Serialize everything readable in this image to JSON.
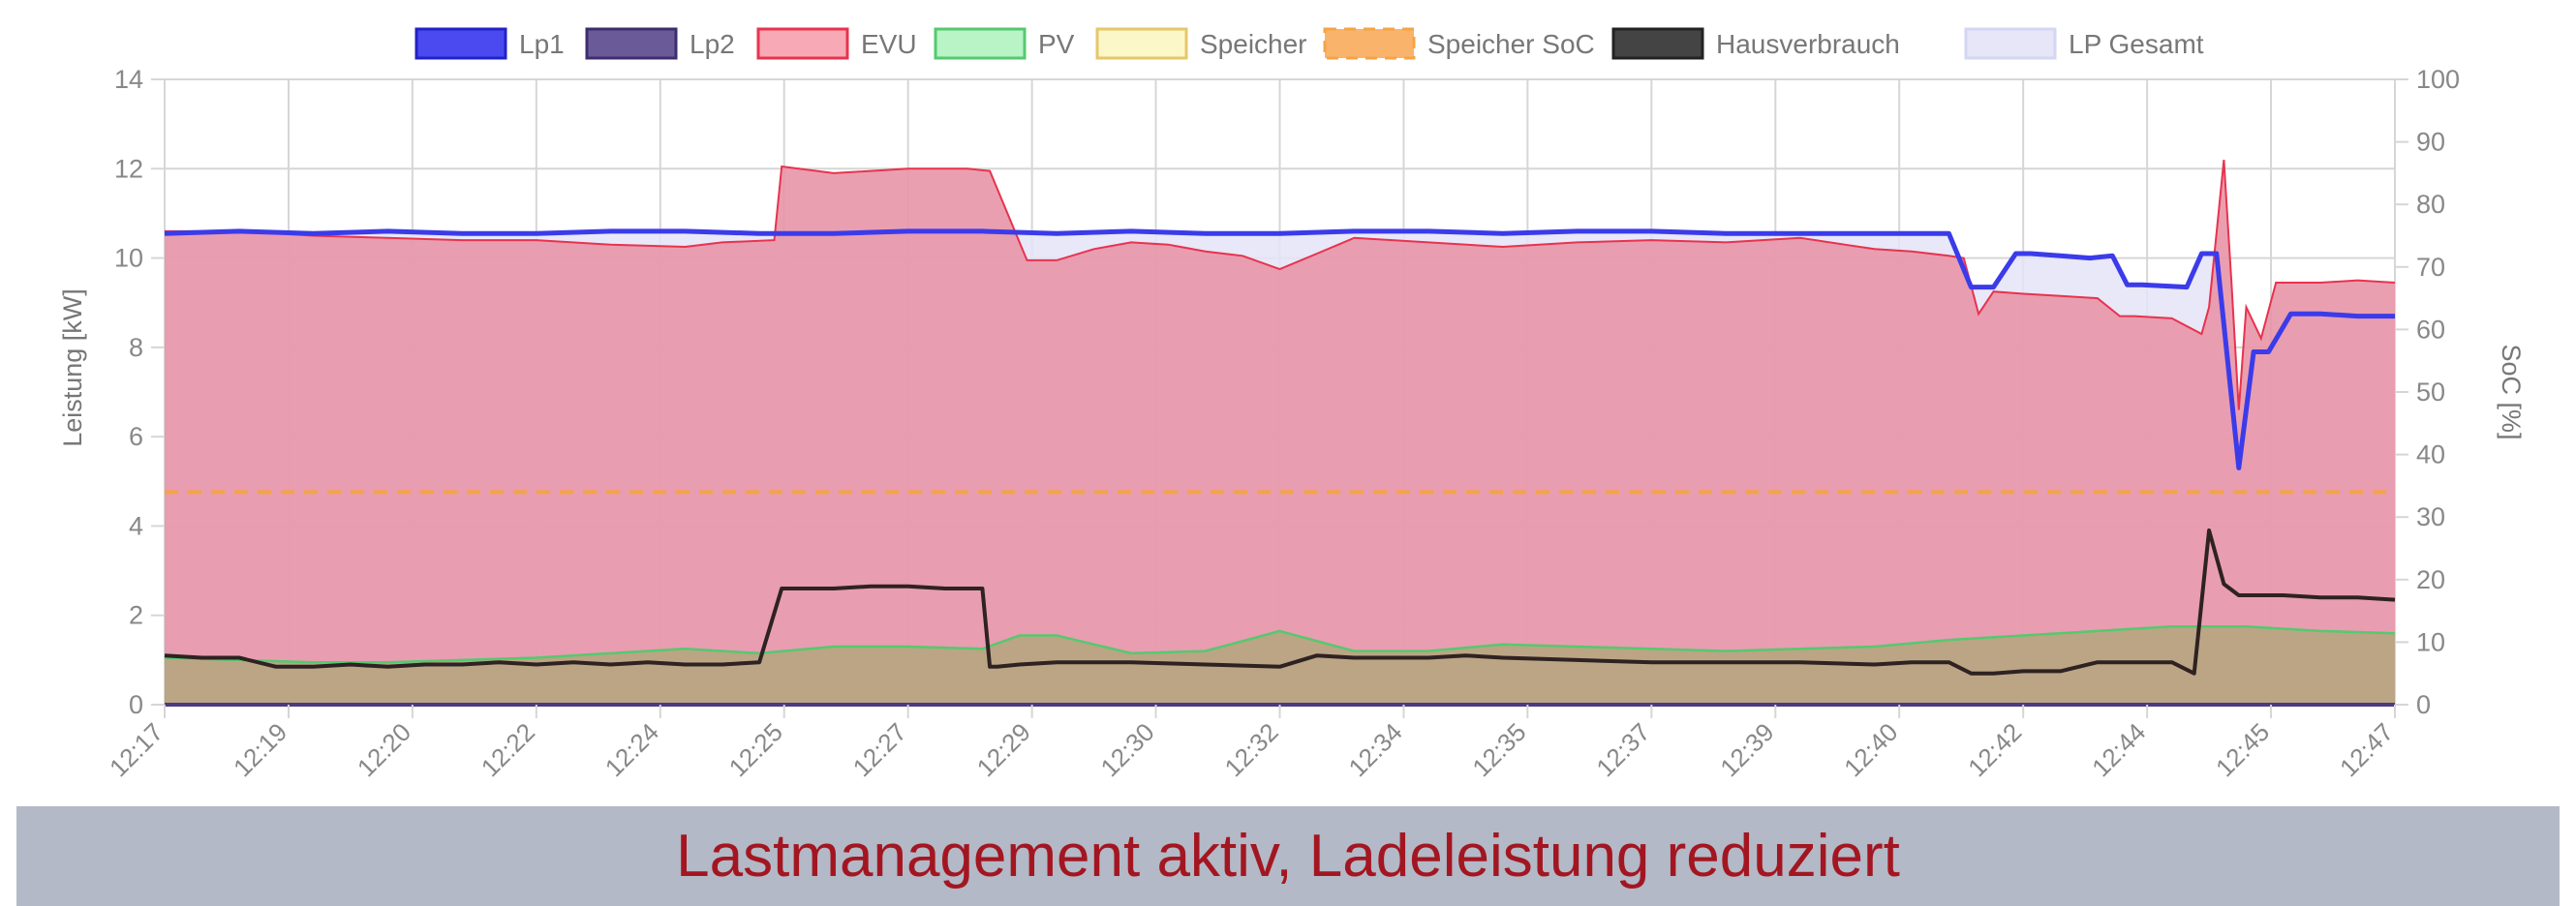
{
  "banner": {
    "text": "Lastmanagement aktiv, Ladeleistung reduziert"
  },
  "chart_data": {
    "type": "line",
    "ylabel": "Leistung [kW]",
    "y2label": "SoC [%]",
    "ylim": [
      0,
      14
    ],
    "y2lim": [
      0,
      100
    ],
    "yticks": [
      0,
      2,
      4,
      6,
      8,
      10,
      12,
      14
    ],
    "y2ticks": [
      0,
      10,
      20,
      30,
      40,
      50,
      60,
      70,
      80,
      90,
      100
    ],
    "xlim": [
      0,
      30
    ],
    "xticks": [
      {
        "x": 0,
        "label": "12:17"
      },
      {
        "x": 1.667,
        "label": "12:19"
      },
      {
        "x": 3.333,
        "label": "12:20"
      },
      {
        "x": 5,
        "label": "12:22"
      },
      {
        "x": 6.667,
        "label": "12:24"
      },
      {
        "x": 8.333,
        "label": "12:25"
      },
      {
        "x": 10,
        "label": "12:27"
      },
      {
        "x": 11.667,
        "label": "12:29"
      },
      {
        "x": 13.333,
        "label": "12:30"
      },
      {
        "x": 15,
        "label": "12:32"
      },
      {
        "x": 16.667,
        "label": "12:34"
      },
      {
        "x": 18.333,
        "label": "12:35"
      },
      {
        "x": 20,
        "label": "12:37"
      },
      {
        "x": 21.667,
        "label": "12:39"
      },
      {
        "x": 23.333,
        "label": "12:40"
      },
      {
        "x": 25,
        "label": "12:42"
      },
      {
        "x": 26.667,
        "label": "12:44"
      },
      {
        "x": 28.333,
        "label": "12:45"
      },
      {
        "x": 30,
        "label": "12:47"
      }
    ],
    "grid": true,
    "legend_position": "top",
    "series": [
      {
        "name": "Lp1",
        "color": "#3b3bea",
        "fill": "#4a4af0",
        "axis": "left",
        "style": "line",
        "width": 5,
        "x": [
          0,
          1,
          2,
          3,
          4,
          5,
          6,
          7,
          8,
          9,
          10,
          11,
          12,
          13,
          14,
          15,
          16,
          17,
          18,
          19,
          20,
          21,
          22,
          23,
          24,
          24.3,
          24.6,
          24.9,
          25.1,
          25.5,
          25.9,
          26.2,
          26.4,
          26.6,
          27.2,
          27.4,
          27.6,
          27.9,
          28.1,
          28.3,
          28.6,
          29,
          29.5,
          30
        ],
        "y": [
          10.55,
          10.6,
          10.55,
          10.6,
          10.55,
          10.55,
          10.6,
          10.6,
          10.55,
          10.55,
          10.6,
          10.6,
          10.55,
          10.6,
          10.55,
          10.55,
          10.6,
          10.6,
          10.55,
          10.6,
          10.6,
          10.55,
          10.55,
          10.55,
          10.55,
          9.35,
          9.35,
          10.1,
          10.1,
          10.05,
          10.0,
          10.05,
          9.4,
          9.4,
          9.35,
          10.1,
          10.1,
          5.3,
          7.9,
          7.9,
          8.75,
          8.75,
          8.7,
          8.7
        ]
      },
      {
        "name": "Lp2",
        "color": "#4d3a80",
        "fill": "#6a5a98",
        "axis": "left",
        "style": "line",
        "width": 4,
        "x": [
          0,
          30
        ],
        "y": [
          0,
          0
        ]
      },
      {
        "name": "EVU",
        "color": "#e8334d",
        "fill": "#f4a0ae",
        "axis": "left",
        "style": "area",
        "width": 2,
        "x": [
          0,
          1,
          2,
          3,
          4,
          5,
          6,
          7,
          7.5,
          8.2,
          8.3,
          9,
          10,
          10.8,
          11.1,
          11.6,
          12,
          12.5,
          13,
          13.5,
          14,
          14.5,
          15,
          15.5,
          16,
          17,
          18,
          19,
          20,
          21,
          22,
          23,
          23.5,
          24,
          24.2,
          24.4,
          24.6,
          25,
          25.5,
          26,
          26.3,
          26.5,
          27,
          27.4,
          27.5,
          27.7,
          27.8,
          27.9,
          28.0,
          28.2,
          28.4,
          28.7,
          29,
          29.5,
          30
        ],
        "y": [
          10.6,
          10.6,
          10.5,
          10.45,
          10.4,
          10.4,
          10.3,
          10.25,
          10.35,
          10.4,
          12.05,
          11.9,
          12.0,
          12.0,
          11.95,
          9.95,
          9.95,
          10.2,
          10.35,
          10.3,
          10.15,
          10.05,
          9.75,
          10.1,
          10.45,
          10.35,
          10.25,
          10.35,
          10.4,
          10.35,
          10.45,
          10.2,
          10.15,
          10.05,
          10.0,
          8.75,
          9.25,
          9.2,
          9.15,
          9.1,
          8.7,
          8.7,
          8.65,
          8.3,
          8.9,
          12.2,
          9.5,
          6.6,
          8.9,
          8.2,
          9.45,
          9.45,
          9.45,
          9.5,
          9.45
        ]
      },
      {
        "name": "PV",
        "color": "#55c96e",
        "fill": "#b3f0c2",
        "axis": "left",
        "style": "area",
        "width": 2,
        "x": [
          0,
          1,
          2,
          3,
          4,
          5,
          6,
          7,
          8,
          9,
          10,
          11,
          11.5,
          12,
          13,
          14,
          15,
          16,
          17,
          18,
          19,
          20,
          21,
          22,
          23,
          24,
          25,
          26,
          27,
          28,
          29,
          30
        ],
        "y": [
          1.05,
          1.0,
          0.95,
          0.95,
          1.0,
          1.05,
          1.15,
          1.25,
          1.15,
          1.3,
          1.3,
          1.25,
          1.55,
          1.55,
          1.15,
          1.2,
          1.65,
          1.2,
          1.2,
          1.35,
          1.3,
          1.25,
          1.2,
          1.25,
          1.3,
          1.45,
          1.55,
          1.65,
          1.75,
          1.75,
          1.65,
          1.6
        ]
      },
      {
        "name": "Speicher",
        "color": "#e6c76a",
        "fill": "#fbf7c6",
        "axis": "left",
        "style": "line",
        "width": 2,
        "x": [
          0,
          30
        ],
        "y": [
          0,
          0
        ]
      },
      {
        "name": "Speicher SoC",
        "color": "#f5a445",
        "fill": "#f9b36a",
        "axis": "right",
        "style": "dashed",
        "width": 4,
        "x": [
          0,
          30
        ],
        "y": [
          34,
          34
        ]
      },
      {
        "name": "Hausverbrauch",
        "color": "#2e2222",
        "fill": "#444444",
        "axis": "left",
        "style": "line",
        "width": 4,
        "x": [
          0,
          0.5,
          1,
          1.5,
          2,
          2.5,
          3,
          3.5,
          4,
          4.5,
          5,
          5.5,
          6,
          6.5,
          7,
          7.5,
          8,
          8.3,
          8.5,
          9,
          9.5,
          10,
          10.5,
          11,
          11.1,
          11.2,
          11.5,
          12,
          13,
          14,
          15,
          15.5,
          16,
          16.5,
          17,
          17.5,
          18,
          19,
          20,
          21,
          22,
          23,
          23.5,
          24,
          24.3,
          24.6,
          25,
          25.5,
          26,
          26.3,
          26.6,
          27,
          27.3,
          27.5,
          27.7,
          27.9,
          28.1,
          28.5,
          29,
          29.5,
          30
        ],
        "y": [
          1.1,
          1.05,
          1.05,
          0.85,
          0.85,
          0.9,
          0.85,
          0.9,
          0.9,
          0.95,
          0.9,
          0.95,
          0.9,
          0.95,
          0.9,
          0.9,
          0.95,
          2.6,
          2.6,
          2.6,
          2.65,
          2.65,
          2.6,
          2.6,
          0.85,
          0.85,
          0.9,
          0.95,
          0.95,
          0.9,
          0.85,
          1.1,
          1.05,
          1.05,
          1.05,
          1.1,
          1.05,
          1.0,
          0.95,
          0.95,
          0.95,
          0.9,
          0.95,
          0.95,
          0.7,
          0.7,
          0.75,
          0.75,
          0.95,
          0.95,
          0.95,
          0.95,
          0.7,
          3.9,
          2.7,
          2.45,
          2.45,
          2.45,
          2.4,
          2.4,
          2.35
        ]
      },
      {
        "name": "LP Gesamt",
        "color": "#d4d7f2",
        "fill": "#e4e4f8",
        "axis": "left",
        "style": "area",
        "width": 1,
        "x": [
          0,
          1,
          2,
          3,
          4,
          5,
          6,
          7,
          8,
          9,
          10,
          11,
          12,
          13,
          14,
          15,
          16,
          17,
          18,
          19,
          20,
          21,
          22,
          23,
          24,
          24.3,
          24.6,
          24.9,
          25.1,
          25.5,
          25.9,
          26.2,
          26.4,
          26.6,
          27.2,
          27.4,
          27.6,
          27.9,
          28.1,
          28.3,
          28.6,
          29,
          29.5,
          30
        ],
        "y": [
          10.55,
          10.6,
          10.55,
          10.6,
          10.55,
          10.55,
          10.6,
          10.6,
          10.55,
          10.55,
          10.6,
          10.6,
          10.55,
          10.6,
          10.55,
          10.55,
          10.6,
          10.6,
          10.55,
          10.6,
          10.6,
          10.55,
          10.55,
          10.55,
          10.55,
          9.35,
          9.35,
          10.1,
          10.1,
          10.05,
          10.0,
          10.05,
          9.4,
          9.4,
          9.35,
          10.1,
          10.1,
          5.3,
          7.9,
          7.9,
          8.75,
          8.75,
          8.7,
          8.7
        ]
      }
    ]
  }
}
